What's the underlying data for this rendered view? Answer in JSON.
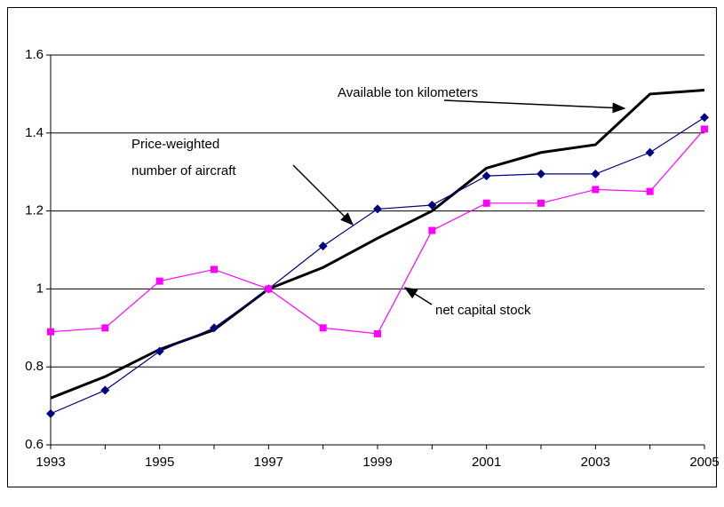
{
  "chart_data": {
    "type": "line",
    "x": [
      1993,
      1994,
      1995,
      1996,
      1997,
      1998,
      1999,
      2000,
      2001,
      2002,
      2003,
      2004,
      2005
    ],
    "series": [
      {
        "name": "Available ton kilometers",
        "color": "#000000",
        "marker": "none",
        "values": [
          0.72,
          0.775,
          0.845,
          0.895,
          1.0,
          1.055,
          1.13,
          1.2,
          1.31,
          1.35,
          1.37,
          1.5,
          1.51
        ]
      },
      {
        "name": "Price-weighted number of aircraft",
        "color": "#000080",
        "marker": "diamond",
        "values": [
          0.68,
          0.74,
          0.84,
          0.9,
          1.0,
          1.11,
          1.205,
          1.215,
          1.29,
          1.295,
          1.295,
          1.35,
          1.44
        ]
      },
      {
        "name": "net capital stock",
        "color": "#ff00ff",
        "marker": "square",
        "values": [
          0.89,
          0.9,
          1.02,
          1.05,
          1.0,
          0.9,
          0.885,
          1.15,
          1.22,
          1.22,
          1.255,
          1.25,
          1.41
        ]
      }
    ],
    "xlim": [
      1993,
      2005
    ],
    "xticks": [
      1993,
      1995,
      1997,
      1999,
      2001,
      2003,
      2005
    ],
    "ylim": [
      0.6,
      1.6
    ],
    "yticks": [
      0.6,
      0.8,
      1,
      1.2,
      1.4,
      1.6
    ],
    "grid": true
  }
}
